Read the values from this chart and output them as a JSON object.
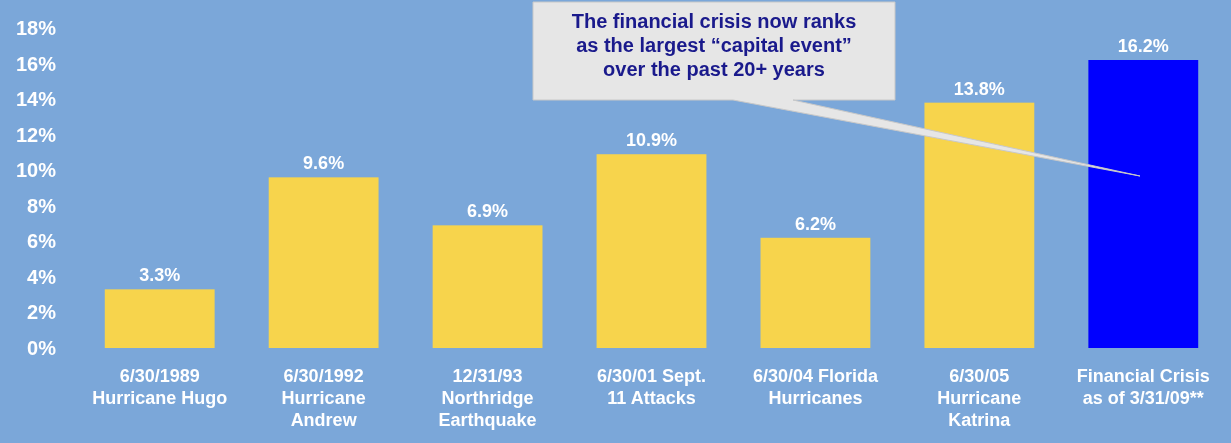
{
  "chart_data": {
    "type": "bar",
    "categories": [
      "6/30/1989\nHurricane Hugo",
      "6/30/1992\nHurricane\nAndrew",
      "12/31/93\nNorthridge\nEarthquake",
      "6/30/01 Sept.\n11 Attacks",
      "6/30/04 Florida\nHurricanes",
      "6/30/05\nHurricane\nKatrina",
      "Financial Crisis\nas of 3/31/09**"
    ],
    "values": [
      3.3,
      9.6,
      6.9,
      10.9,
      6.2,
      13.8,
      16.2
    ],
    "colors": [
      "#f7d44c",
      "#f7d44c",
      "#f7d44c",
      "#f7d44c",
      "#f7d44c",
      "#f7d44c",
      "#0000ff"
    ],
    "ylim": [
      0,
      18
    ],
    "yticks": [
      {
        "value": 0,
        "label": "0%"
      },
      {
        "value": 2,
        "label": "2%"
      },
      {
        "value": 4,
        "label": "4%"
      },
      {
        "value": 6,
        "label": "6%"
      },
      {
        "value": 8,
        "label": "8%"
      },
      {
        "value": 10,
        "label": "10%"
      },
      {
        "value": 12,
        "label": "12%"
      },
      {
        "value": 14,
        "label": "14%"
      },
      {
        "value": 16,
        "label": "16%"
      },
      {
        "value": 18,
        "label": "18%"
      }
    ],
    "value_labels": [
      "3.3%",
      "9.6%",
      "6.9%",
      "10.9%",
      "6.2%",
      "13.8%",
      "16.2%"
    ],
    "annotations": [
      "The financial crisis now ranks\nas the largest “capital event”\nover the past 20+ years"
    ]
  }
}
